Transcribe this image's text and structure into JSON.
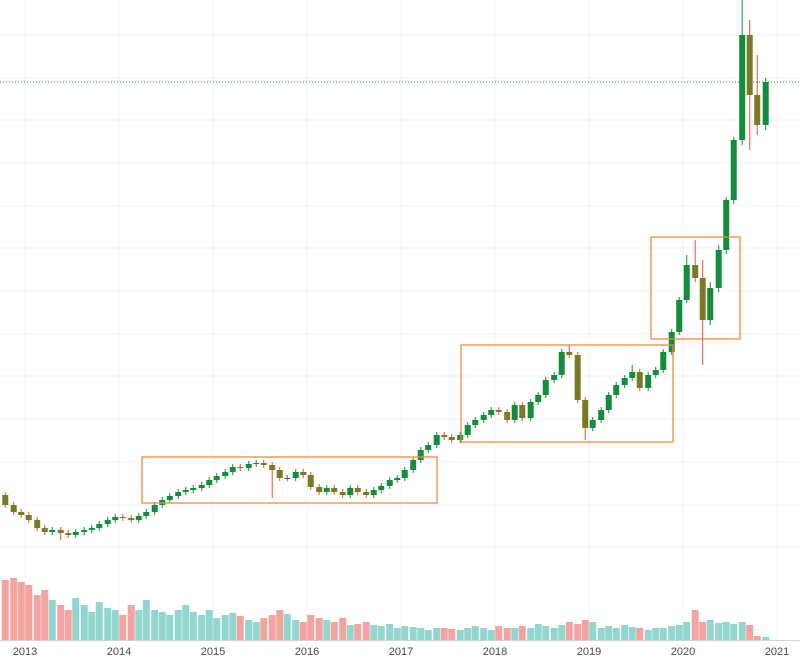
{
  "chart_data": {
    "type": "candlestick",
    "x": [
      2012.79,
      2012.88,
      2012.96,
      2013.04,
      2013.13,
      2013.21,
      2013.29,
      2013.38,
      2013.46,
      2013.54,
      2013.63,
      2013.71,
      2013.79,
      2013.88,
      2013.96,
      2014.04,
      2014.13,
      2014.21,
      2014.29,
      2014.38,
      2014.46,
      2014.54,
      2014.63,
      2014.71,
      2014.79,
      2014.88,
      2014.96,
      2015.04,
      2015.13,
      2015.21,
      2015.29,
      2015.38,
      2015.46,
      2015.54,
      2015.63,
      2015.71,
      2015.79,
      2015.88,
      2015.96,
      2016.04,
      2016.13,
      2016.21,
      2016.29,
      2016.38,
      2016.46,
      2016.54,
      2016.63,
      2016.71,
      2016.79,
      2016.88,
      2016.96,
      2017.04,
      2017.13,
      2017.21,
      2017.29,
      2017.38,
      2017.46,
      2017.54,
      2017.63,
      2017.71,
      2017.79,
      2017.88,
      2017.96,
      2018.04,
      2018.13,
      2018.21,
      2018.29,
      2018.38,
      2018.46,
      2018.54,
      2018.63,
      2018.71,
      2018.79,
      2018.88,
      2018.96,
      2019.04,
      2019.13,
      2019.21,
      2019.29,
      2019.38,
      2019.46,
      2019.54,
      2019.63,
      2019.71,
      2019.79,
      2019.88,
      2019.96,
      2020.04,
      2020.13,
      2020.21,
      2020.29,
      2020.38,
      2020.46,
      2020.54,
      2020.63,
      2020.71,
      2020.79,
      2020.88
    ],
    "open": [
      105,
      95,
      88,
      85,
      80,
      72,
      68,
      70,
      67,
      65,
      68,
      70,
      72,
      76,
      80,
      83,
      82,
      80,
      84,
      88,
      95,
      100,
      104,
      108,
      110,
      112,
      115,
      120,
      124,
      128,
      133,
      132,
      136,
      137,
      135,
      130,
      122,
      122,
      128,
      125,
      113,
      108,
      112,
      108,
      105,
      112,
      108,
      105,
      110,
      114,
      120,
      122,
      130,
      140,
      150,
      155,
      165,
      163,
      160,
      165,
      175,
      180,
      185,
      190,
      188,
      180,
      195,
      182,
      198,
      205,
      220,
      225,
      248,
      245,
      200,
      172,
      180,
      190,
      205,
      215,
      222,
      228,
      212,
      225,
      230,
      248,
      268,
      300,
      335,
      322,
      280,
      312,
      350,
      400,
      460,
      565,
      505,
      475
    ],
    "close": [
      95,
      88,
      85,
      80,
      72,
      68,
      70,
      67,
      65,
      68,
      70,
      72,
      76,
      80,
      83,
      82,
      80,
      84,
      88,
      95,
      100,
      104,
      108,
      110,
      112,
      115,
      120,
      124,
      128,
      133,
      132,
      136,
      137,
      135,
      130,
      122,
      122,
      128,
      125,
      113,
      108,
      112,
      108,
      105,
      112,
      108,
      105,
      110,
      114,
      120,
      122,
      130,
      140,
      150,
      155,
      165,
      163,
      160,
      165,
      175,
      180,
      185,
      190,
      188,
      180,
      195,
      182,
      198,
      205,
      220,
      225,
      248,
      245,
      200,
      172,
      180,
      190,
      205,
      215,
      222,
      228,
      212,
      225,
      230,
      248,
      268,
      300,
      335,
      322,
      280,
      312,
      350,
      400,
      460,
      565,
      505,
      475,
      518
    ],
    "high": [
      108,
      98,
      91,
      88,
      83,
      75,
      73,
      73,
      70,
      71,
      73,
      75,
      79,
      83,
      86,
      86,
      85,
      87,
      91,
      98,
      103,
      107,
      111,
      113,
      115,
      118,
      123,
      127,
      131,
      136,
      136,
      139,
      140,
      140,
      138,
      133,
      125,
      131,
      131,
      128,
      116,
      115,
      115,
      111,
      115,
      115,
      111,
      113,
      117,
      123,
      125,
      133,
      143,
      153,
      158,
      168,
      168,
      166,
      168,
      178,
      183,
      188,
      193,
      193,
      191,
      198,
      198,
      201,
      208,
      223,
      228,
      251,
      255,
      248,
      203,
      183,
      193,
      208,
      218,
      225,
      235,
      231,
      228,
      233,
      251,
      271,
      303,
      345,
      360,
      340,
      318,
      355,
      403,
      463,
      600,
      580,
      545,
      522
    ],
    "low": [
      92,
      85,
      82,
      77,
      69,
      65,
      65,
      60,
      62,
      62,
      65,
      67,
      69,
      73,
      77,
      79,
      77,
      77,
      81,
      85,
      92,
      97,
      101,
      105,
      107,
      109,
      112,
      117,
      121,
      125,
      129,
      129,
      133,
      132,
      102,
      119,
      119,
      119,
      122,
      110,
      105,
      105,
      105,
      102,
      102,
      105,
      102,
      102,
      107,
      111,
      117,
      119,
      127,
      137,
      147,
      152,
      160,
      157,
      157,
      162,
      172,
      177,
      182,
      185,
      177,
      177,
      179,
      179,
      195,
      202,
      217,
      222,
      242,
      197,
      160,
      169,
      177,
      187,
      202,
      212,
      219,
      209,
      209,
      222,
      227,
      245,
      265,
      297,
      318,
      235,
      275,
      308,
      346,
      396,
      455,
      450,
      465,
      470
    ],
    "volume": [
      60,
      62,
      58,
      55,
      45,
      50,
      40,
      35,
      30,
      42,
      35,
      28,
      38,
      32,
      30,
      25,
      35,
      30,
      40,
      30,
      28,
      25,
      30,
      35,
      28,
      25,
      30,
      22,
      25,
      27,
      24,
      20,
      18,
      22,
      25,
      30,
      26,
      20,
      18,
      25,
      22,
      20,
      18,
      22,
      15,
      16,
      18,
      15,
      14,
      16,
      12,
      14,
      13,
      12,
      10,
      12,
      12,
      11,
      10,
      12,
      14,
      12,
      10,
      14,
      12,
      12,
      14,
      12,
      16,
      14,
      12,
      15,
      18,
      16,
      20,
      18,
      12,
      14,
      12,
      15,
      13,
      12,
      10,
      12,
      12,
      14,
      15,
      18,
      30,
      18,
      20,
      17,
      18,
      16,
      18,
      15,
      4,
      3
    ],
    "up_color": "#138d3b",
    "down_color": "#7a7a22",
    "wick_down_color": "#e0533f",
    "volume_up_color": "#92d6cf",
    "volume_down_color": "#f3a3a0",
    "price_line_color": "#2e9e4a",
    "xlim": [
      2012.734,
      2021.245
    ],
    "xticks": [
      2013,
      2014,
      2015,
      2016,
      2017,
      2018,
      2019,
      2020,
      2021
    ],
    "ylim": [
      0,
      600
    ],
    "yticks": [
      53,
      95,
      138,
      181,
      224,
      266,
      309,
      352,
      394,
      437,
      480,
      522,
      565
    ],
    "volume_lim": [
      0,
      100
    ],
    "grid": true
  }
}
